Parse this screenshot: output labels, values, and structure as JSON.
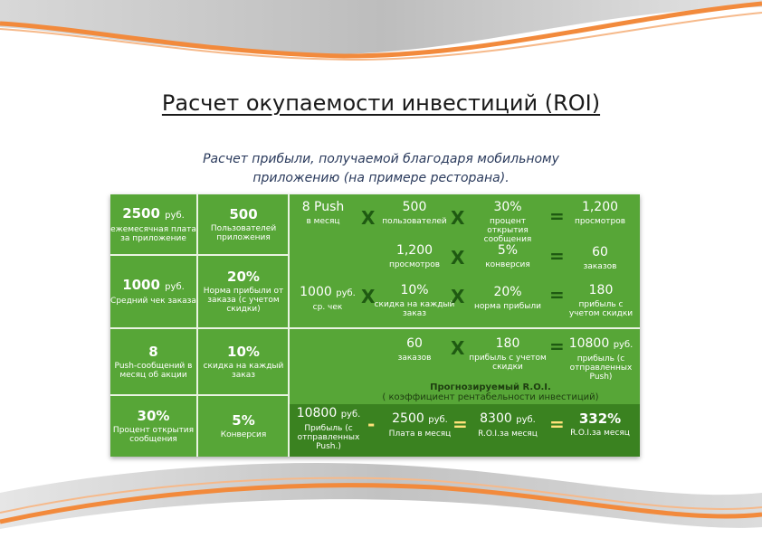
{
  "title": "Расчет окупаемости инвестиций (ROI)",
  "subtitle_line1": "Расчет прибыли, получаемой благодаря мобильному",
  "subtitle_line2": "приложению (на примере ресторана).",
  "left": [
    {
      "v1": "2500",
      "u1": "руб.",
      "l1": "ежемесячная плата за приложение",
      "v2": "500",
      "u2": "",
      "l2": "Пользователей приложения"
    },
    {
      "v1": "1000",
      "u1": "руб.",
      "l1": "Средний чек заказа",
      "v2": "20%",
      "u2": "",
      "l2": "Норма прибыли от заказа (с учетом скидки)"
    },
    {
      "v1": "8",
      "u1": "",
      "l1": "Push-сообщений в месяц об акции",
      "v2": "10%",
      "u2": "",
      "l2": "скидка на каждый заказ"
    },
    {
      "v1": "30%",
      "u1": "",
      "l1": "Процент открытия сообщения",
      "v2": "5%",
      "u2": "",
      "l2": "Конверсия"
    }
  ],
  "calc": {
    "r1": {
      "a": "8 Push",
      "al": "в месяц",
      "b": "500",
      "bl": "пользователей",
      "c": "30%",
      "cl": "процент открытия сообщения",
      "r": "1,200",
      "rl": "просмотров"
    },
    "r2": {
      "b": "1,200",
      "bl": "просмотров",
      "c": "5%",
      "cl": "конверсия",
      "r": "60",
      "rl": "заказов"
    },
    "r3": {
      "a": "1000",
      "au": "руб.",
      "al": "ср. чек",
      "b": "10%",
      "bl": "скидка на каждый заказ",
      "c": "20%",
      "cl": "норма прибыли",
      "r": "180",
      "rl": "прибыль с учетом скидки"
    },
    "r4": {
      "b": "60",
      "bl": "заказов",
      "c": "180",
      "cl": "прибыль с учетом скидки",
      "r": "10800",
      "ru": "руб.",
      "rl": "прибыль (с отправленных Push)"
    },
    "roi_title": "Прогнозируемый R.O.I.",
    "roi_sub": "( коэффициент рентабельности инвестиций)",
    "r5": {
      "a": "10800",
      "au": "руб.",
      "al": "Прибыль (с отправленных Push.)",
      "b": "2500",
      "bu": "руб.",
      "bl": "Плата в месяц",
      "c": "8300",
      "cu": "руб.",
      "cl": "R.O.I.за месяц",
      "r": "332%",
      "rl": "R.O.I.за месяц"
    }
  },
  "ops": {
    "times": "X",
    "eq": "=",
    "minus": "-"
  }
}
